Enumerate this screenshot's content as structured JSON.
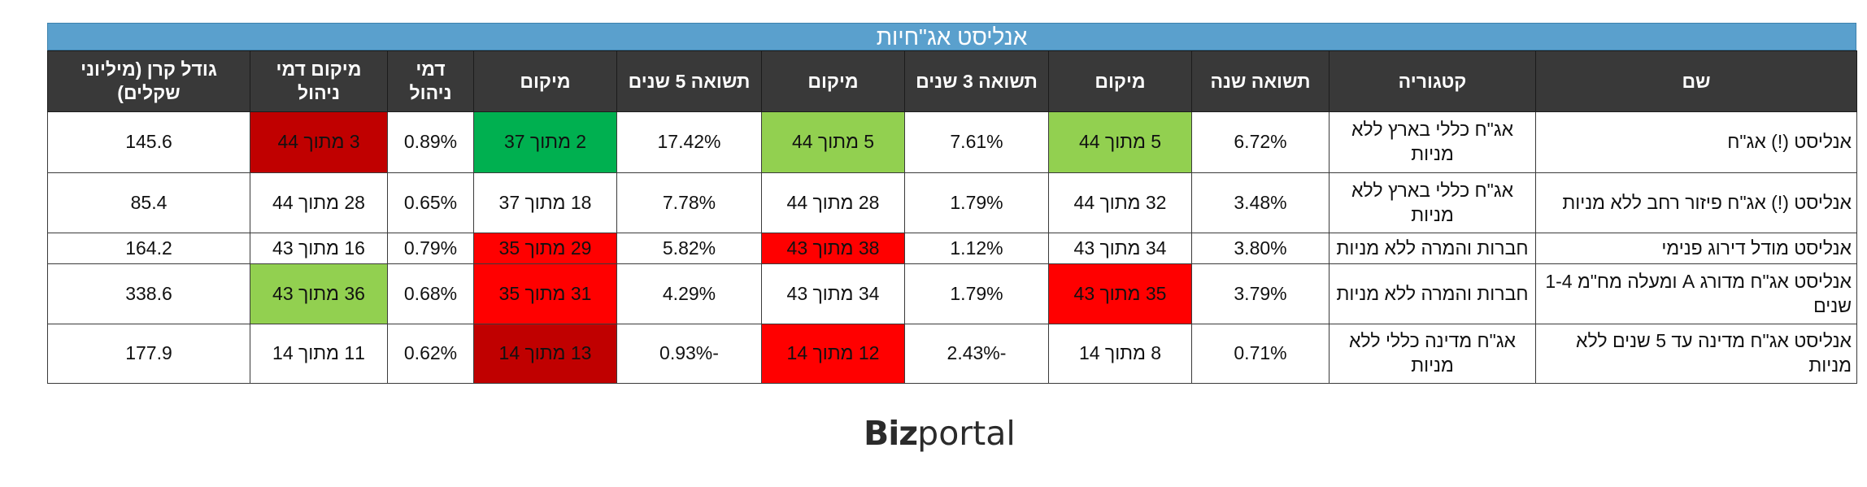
{
  "title": "אנליסט אג\"חיות",
  "colors": {
    "title_bar": "#5aa0cd",
    "header_bg": "#393939",
    "light_green": "#92d050",
    "green": "#00b050",
    "red": "#ff0000",
    "dark_red": "#c00000"
  },
  "headers": [
    "שם",
    "קטגוריה",
    "תשואה שנה",
    "מיקום",
    "תשואה 3 שנים",
    "מיקום",
    "תשואה 5 שנים",
    "מיקום",
    "דמי ניהול",
    "מיקום דמי ניהול",
    "גודל קרן (מיליוני שקלים)"
  ],
  "rows": [
    {
      "name": "אנליסט (!) אג\"ח",
      "category": "אג\"ח כללי בארץ ללא מניות",
      "return_1y": "6.72%",
      "rank_1y": "5 מתוך 44",
      "return_3y": "7.61%",
      "rank_3y": "5 מתוך 44",
      "return_5y": "17.42%",
      "rank_5y": "2 מתוך 37",
      "fee": "0.89%",
      "rank_fee": "3 מתוך 44",
      "size": "145.6",
      "colors": [
        "light_green",
        "light_green",
        "green",
        "dark_red"
      ]
    },
    {
      "name": "אנליסט (!) אג\"ח פיזור רחב ללא מניות",
      "category": "אג\"ח כללי בארץ ללא מניות",
      "return_1y": "3.48%",
      "rank_1y": "32 מתוך 44",
      "return_3y": "1.79%",
      "rank_3y": "28 מתוך 44",
      "return_5y": "7.78%",
      "rank_5y": "18 מתוך 37",
      "fee": "0.65%",
      "rank_fee": "28 מתוך 44",
      "size": "85.4",
      "colors": [
        "none",
        "none",
        "none",
        "none"
      ]
    },
    {
      "name": "אנליסט מודל דירוג פנימי",
      "category": "חברות והמרה ללא מניות",
      "return_1y": "3.80%",
      "rank_1y": "34 מתוך 43",
      "return_3y": "1.12%",
      "rank_3y": "38 מתוך 43",
      "return_5y": "5.82%",
      "rank_5y": "29 מתוך 35",
      "fee": "0.79%",
      "rank_fee": "16 מתוך 43",
      "size": "164.2",
      "colors": [
        "none",
        "red",
        "red",
        "none"
      ]
    },
    {
      "name": "אנליסט אג\"ח מדורג A ומעלה מח\"מ 1-4 שנים",
      "category": "חברות והמרה ללא מניות",
      "return_1y": "3.79%",
      "rank_1y": "35 מתוך 43",
      "return_3y": "1.79%",
      "rank_3y": "34 מתוך 43",
      "return_5y": "4.29%",
      "rank_5y": "31 מתוך 35",
      "fee": "0.68%",
      "rank_fee": "36 מתוך 43",
      "size": "338.6",
      "colors": [
        "red",
        "none",
        "red",
        "light_green"
      ]
    },
    {
      "name": "אנליסט אג\"ח מדינה עד 5 שנים ללא מניות",
      "category": "אג\"ח מדינה כללי ללא מניות",
      "return_1y": "0.71%",
      "rank_1y": "8 מתוך 14",
      "return_3y": "-2.43%",
      "rank_3y": "12 מתוך 14",
      "return_5y": "-0.93%",
      "rank_5y": "13 מתוך 14",
      "fee": "0.62%",
      "rank_fee": "11 מתוך 14",
      "size": "177.9",
      "colors": [
        "none",
        "red",
        "dark_red",
        "none"
      ]
    }
  ],
  "logo": {
    "part1": "Biz",
    "part2": "portal"
  }
}
